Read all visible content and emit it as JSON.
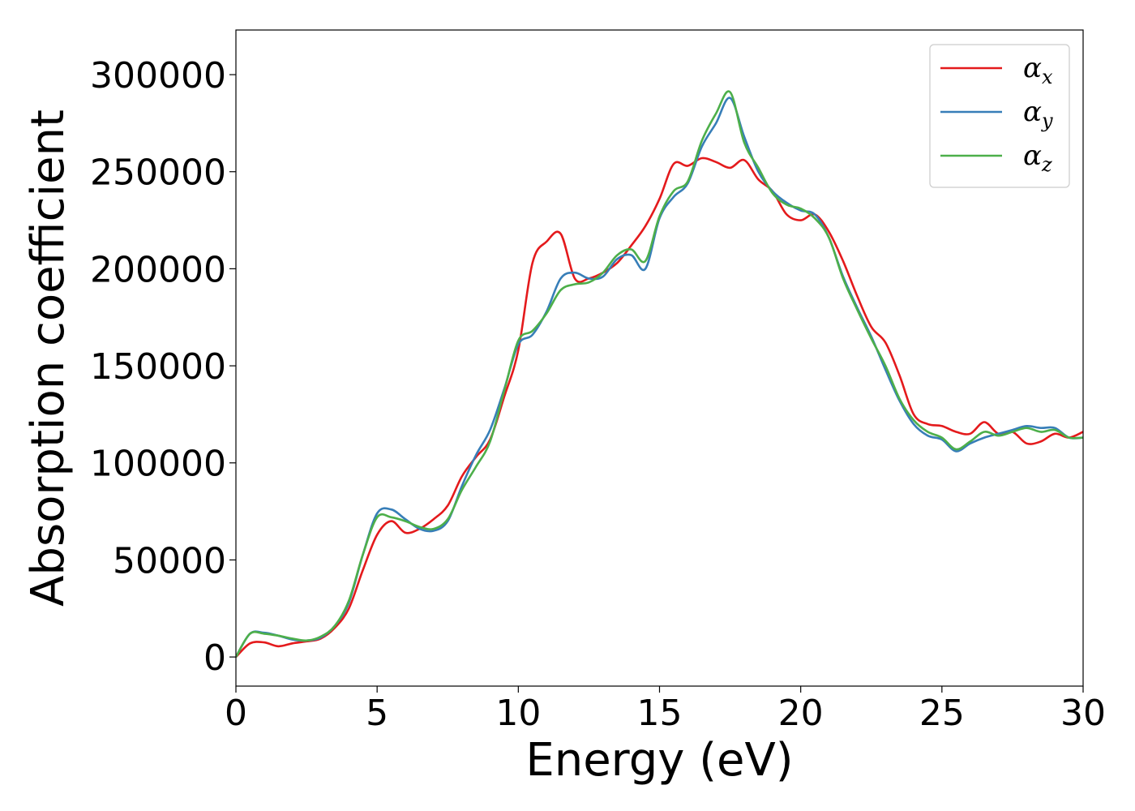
{
  "chart_data": {
    "type": "line",
    "xlabel": "Energy (eV)",
    "ylabel": "Absorption coefficient",
    "xlim": [
      0,
      30
    ],
    "ylim": [
      -15000,
      323000
    ],
    "xticks": [
      0,
      5,
      10,
      15,
      20,
      25,
      30
    ],
    "xtick_labels": [
      "0",
      "5",
      "10",
      "15",
      "20",
      "25",
      "30"
    ],
    "yticks": [
      0,
      50000,
      100000,
      150000,
      200000,
      250000,
      300000
    ],
    "ytick_labels": [
      "0",
      "50000",
      "100000",
      "150000",
      "200000",
      "250000",
      "300000"
    ],
    "grid": false,
    "legend_position": "top-right",
    "x": [
      0,
      0.5,
      1,
      1.5,
      2,
      2.5,
      3,
      3.5,
      4,
      4.5,
      5,
      5.5,
      6,
      6.5,
      7,
      7.5,
      8,
      8.5,
      9,
      9.5,
      10,
      10.5,
      11,
      11.5,
      12,
      12.5,
      13,
      13.5,
      14,
      14.5,
      15,
      15.5,
      16,
      16.5,
      17,
      17.5,
      18,
      18.5,
      19,
      19.5,
      20,
      20.5,
      21,
      21.5,
      22,
      22.5,
      23,
      23.5,
      24,
      24.5,
      25,
      25.5,
      26,
      26.5,
      27,
      27.5,
      28,
      28.5,
      29,
      29.5,
      30
    ],
    "series": [
      {
        "name": "α",
        "subscript": "x",
        "color": "#e41a1c",
        "values": [
          0,
          7000,
          7500,
          5500,
          7000,
          8000,
          9500,
          15000,
          25000,
          45000,
          63000,
          70000,
          64000,
          66000,
          71000,
          78000,
          93000,
          103000,
          112000,
          134000,
          158000,
          203000,
          214000,
          218000,
          195000,
          195000,
          198000,
          203000,
          212000,
          222000,
          236000,
          254000,
          253000,
          257000,
          255000,
          252000,
          256000,
          246000,
          240000,
          228000,
          225000,
          228000,
          219000,
          204000,
          186000,
          170000,
          162000,
          145000,
          125000,
          120000,
          119000,
          116000,
          115000,
          121000,
          115000,
          116000,
          110000,
          111000,
          115000,
          113000,
          116000
        ]
      },
      {
        "name": "α",
        "subscript": "y",
        "color": "#377eb8",
        "values": [
          0,
          12000,
          12500,
          11000,
          9000,
          8500,
          10000,
          16000,
          28000,
          53000,
          74000,
          76000,
          71000,
          66000,
          65000,
          70000,
          88000,
          104000,
          117000,
          138000,
          161000,
          166000,
          178000,
          195000,
          198000,
          195000,
          196000,
          205000,
          207000,
          200000,
          226000,
          237000,
          244000,
          263000,
          275000,
          288000,
          268000,
          250000,
          240000,
          234000,
          230000,
          228000,
          216000,
          196000,
          180000,
          165000,
          148000,
          132000,
          120000,
          114000,
          112000,
          106000,
          110000,
          113000,
          115000,
          117000,
          119000,
          118000,
          118000,
          113000,
          113000
        ]
      },
      {
        "name": "α",
        "subscript": "z",
        "color": "#4daf4a",
        "values": [
          0,
          12000,
          12000,
          11000,
          9500,
          8500,
          10500,
          16000,
          29000,
          53000,
          72000,
          72000,
          70000,
          67000,
          66000,
          71000,
          86000,
          98000,
          111000,
          137000,
          163000,
          168000,
          177000,
          189000,
          192000,
          193000,
          198000,
          207000,
          210000,
          204000,
          227000,
          240000,
          245000,
          266000,
          280000,
          291000,
          265000,
          252000,
          239000,
          233000,
          231000,
          226000,
          216000,
          195000,
          179000,
          164000,
          150000,
          133000,
          122000,
          116000,
          113000,
          107000,
          111000,
          116000,
          114000,
          116000,
          118000,
          116000,
          117000,
          113000,
          113000
        ]
      }
    ]
  }
}
